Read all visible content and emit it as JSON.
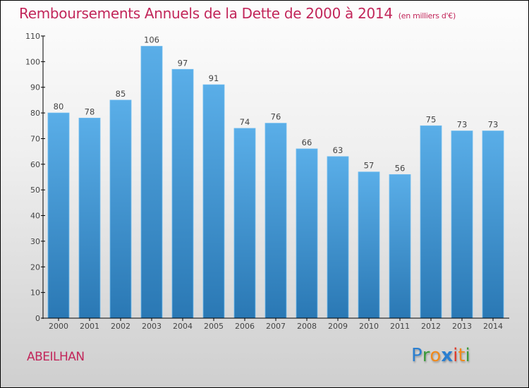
{
  "header": {
    "title": "Remboursements Annuels de la Dette de 2000 à 2014",
    "subtitle": "(en milliers d'€)"
  },
  "footer": {
    "commune": "ABEILHAN",
    "logo": {
      "letters": [
        {
          "char": "P",
          "color": "#2b7fd0"
        },
        {
          "char": "r",
          "color": "#3a9a3a"
        },
        {
          "char": "o",
          "color": "#f08a1c"
        },
        {
          "char": "x",
          "color": "#2b7fd0"
        },
        {
          "char": "i",
          "color": "#e03a2a"
        },
        {
          "char": "t",
          "color": "#f08a1c"
        },
        {
          "char": "i",
          "color": "#3a9a3a"
        }
      ]
    }
  },
  "colors": {
    "title": "#c2265a",
    "bar_top": "#5aaee8",
    "bar_bottom": "#2a78b4",
    "axis": "#000000"
  },
  "chart_data": {
    "type": "bar",
    "title": "Remboursements Annuels de la Dette de 2000 à 2014",
    "subtitle": "(en milliers d'€)",
    "xlabel": "",
    "ylabel": "",
    "categories": [
      "2000",
      "2001",
      "2002",
      "2003",
      "2004",
      "2005",
      "2006",
      "2007",
      "2008",
      "2009",
      "2010",
      "2011",
      "2012",
      "2013",
      "2014"
    ],
    "values": [
      80,
      78,
      85,
      106,
      97,
      91,
      74,
      76,
      66,
      63,
      57,
      56,
      75,
      73,
      73
    ],
    "ylim": [
      0,
      110
    ],
    "yticks": [
      0,
      10,
      20,
      30,
      40,
      50,
      60,
      70,
      80,
      90,
      100,
      110
    ],
    "grid": false,
    "legend": "none",
    "data_labels": true
  }
}
